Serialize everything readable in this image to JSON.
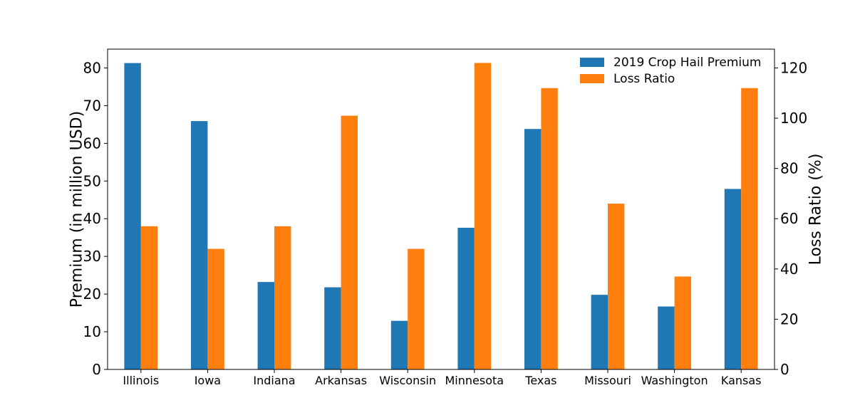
{
  "chart_data": {
    "type": "bar",
    "categories": [
      "Illinois",
      "Iowa",
      "Indiana",
      "Arkansas",
      "Wisconsin",
      "Minnesota",
      "Texas",
      "Missouri",
      "Washington",
      "Kansas"
    ],
    "series": [
      {
        "name": "2019 Crop Hail Premium",
        "axis": "left",
        "color": "#1f77b4",
        "values": [
          81.3,
          65.9,
          23.2,
          21.8,
          12.9,
          37.6,
          63.8,
          19.8,
          16.7,
          47.9
        ]
      },
      {
        "name": "Loss Ratio",
        "axis": "right",
        "color": "#ff7f0e",
        "values": [
          57,
          48,
          57,
          101,
          48,
          122,
          112,
          66,
          37,
          112
        ]
      }
    ],
    "ylabel": "Premium (in million USD)",
    "ylabel_right": "Loss Ratio (%)",
    "xlabel": "",
    "ylim": [
      0,
      85
    ],
    "ylim_right": [
      0,
      127.5
    ],
    "yticks": [
      "0",
      "10",
      "20",
      "30",
      "40",
      "50",
      "60",
      "70",
      "80"
    ],
    "yticks_right": [
      "0",
      "20",
      "40",
      "60",
      "80",
      "100",
      "120"
    ],
    "grid": false,
    "legend_position": "top-right"
  }
}
